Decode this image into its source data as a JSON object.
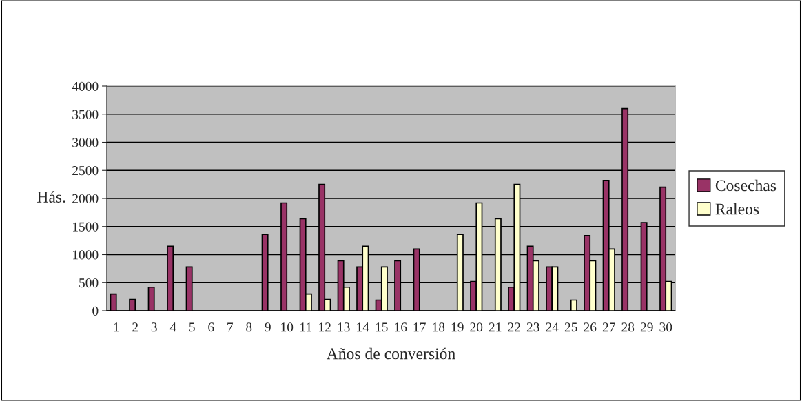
{
  "chart_data": {
    "type": "bar",
    "xlabel": "Años de conversión",
    "ylabel": "Hás.",
    "categories": [
      "1",
      "2",
      "3",
      "4",
      "5",
      "6",
      "7",
      "8",
      "9",
      "10",
      "11",
      "12",
      "13",
      "14",
      "15",
      "16",
      "17",
      "18",
      "19",
      "20",
      "21",
      "22",
      "23",
      "24",
      "25",
      "26",
      "27",
      "28",
      "29",
      "30"
    ],
    "series": [
      {
        "name": "Cosechas",
        "color": "#993366",
        "values": [
          300,
          200,
          420,
          1150,
          780,
          null,
          null,
          null,
          1360,
          1920,
          1640,
          2250,
          890,
          780,
          190,
          890,
          1100,
          null,
          null,
          520,
          null,
          420,
          1150,
          780,
          null,
          1340,
          2320,
          3600,
          1570,
          2200
        ]
      },
      {
        "name": "Raleos",
        "color": "#ffffcc",
        "values": [
          null,
          null,
          null,
          null,
          null,
          null,
          null,
          null,
          null,
          null,
          300,
          200,
          420,
          1150,
          780,
          null,
          null,
          null,
          1360,
          1920,
          1640,
          2250,
          890,
          780,
          190,
          890,
          1100,
          null,
          null,
          520
        ]
      }
    ],
    "ylim": [
      0,
      4000
    ],
    "yticks": [
      0,
      500,
      1000,
      1500,
      2000,
      2500,
      3000,
      3500,
      4000
    ],
    "grid": "y",
    "legend": "right"
  }
}
